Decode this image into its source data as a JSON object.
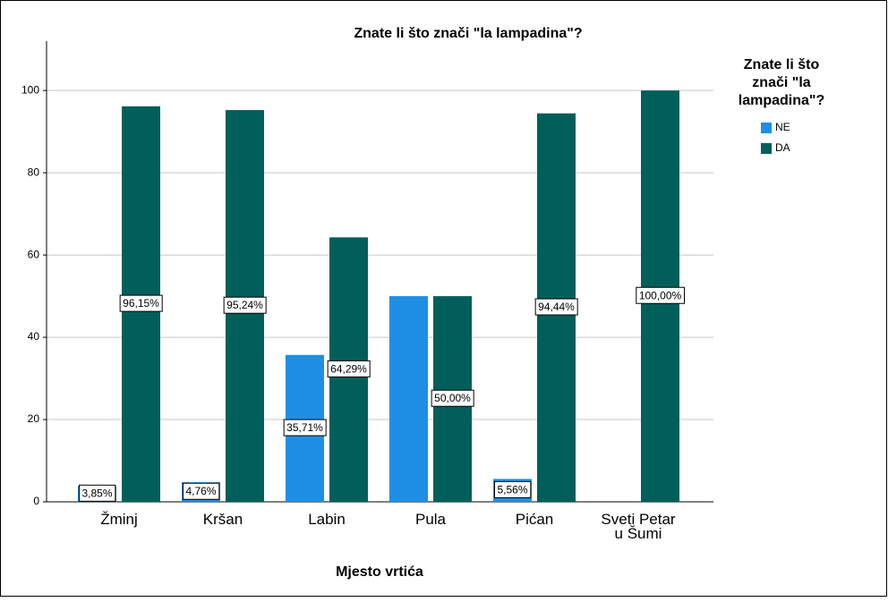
{
  "chart_data": {
    "type": "bar",
    "title": "Znate li što znači \"la lampadina\"?",
    "x_label": "Mjesto vrtića",
    "legend_title": "Znate li što znači \"la lampadina\"?",
    "categories": [
      "Žminj",
      "Kršan",
      "Labin",
      "Pula",
      "Pićan",
      "Sveti Petar u Šumi"
    ],
    "series": [
      {
        "name": "NE",
        "color": "#1f8fe3",
        "values": [
          3.85,
          4.76,
          35.71,
          50,
          5.56,
          null
        ],
        "value_labels": [
          "3,85%",
          "4,76%",
          "35,71%",
          null,
          "5,56%",
          null
        ]
      },
      {
        "name": "DA",
        "color": "#005f5b",
        "values": [
          96.15,
          95.24,
          64.29,
          50,
          94.44,
          100
        ],
        "value_labels": [
          "96,15%",
          "95,24%",
          "64,29%",
          "50,00%",
          "94,44%",
          "100,00%"
        ]
      }
    ],
    "ylim": [
      0,
      112
    ],
    "yticks": [
      0,
      20,
      40,
      60,
      80,
      100
    ],
    "grid": true,
    "legend": "right"
  }
}
